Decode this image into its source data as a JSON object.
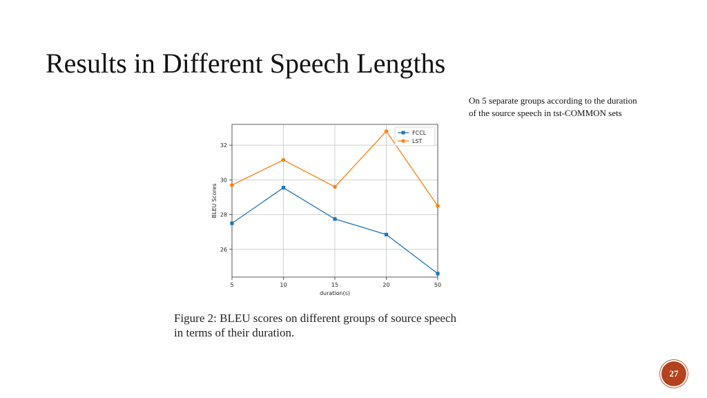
{
  "slide": {
    "title": "Results in Different Speech Lengths",
    "note_lines": [
      "On 5 separate groups according to the duration",
      "of the source speech in tst-COMMON sets"
    ],
    "caption_lines": [
      "Figure 2: BLEU scores on different groups of source speech",
      "in terms of their duration."
    ],
    "page_number": "27",
    "accent_color": "#b5421e"
  },
  "chart_data": {
    "type": "line",
    "categories": [
      "5",
      "10",
      "15",
      "20",
      "50"
    ],
    "xlabel": "duration(s)",
    "ylabel": "BLEU Scores",
    "ylim": [
      24.4,
      33.2
    ],
    "yticks": [
      26,
      28,
      30,
      32
    ],
    "grid": true,
    "legend_position": "top-right",
    "series": [
      {
        "name": "FCCL",
        "color": "#1f77b4",
        "marker": "square",
        "values": [
          27.5,
          29.55,
          27.75,
          26.85,
          24.6
        ]
      },
      {
        "name": "LST",
        "color": "#ff7f0e",
        "marker": "circle",
        "values": [
          29.7,
          31.15,
          29.6,
          32.8,
          28.5
        ]
      }
    ]
  }
}
